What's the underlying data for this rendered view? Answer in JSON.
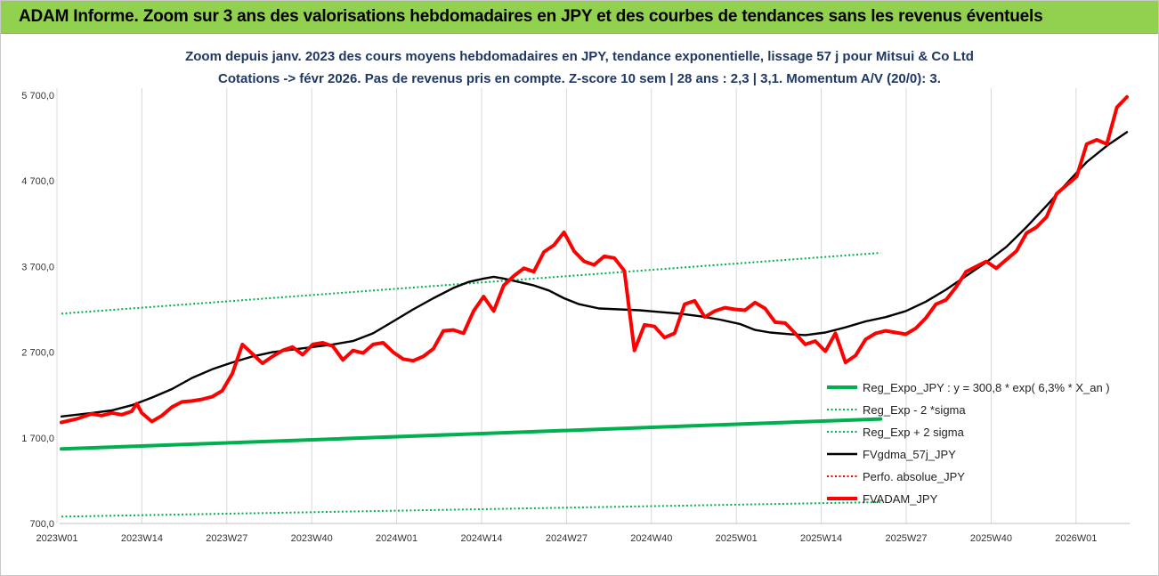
{
  "banner": {
    "title": "ADAM Informe. Zoom sur 3 ans des valorisations hebdomadaires en JPY et des courbes de tendances sans les revenus éventuels"
  },
  "chart_data": {
    "type": "line",
    "title_line1": "Zoom depuis janv. 2023 des cours moyens hebdomadaires en JPY, tendance exponentielle, lissage 57 j pour Mitsui & Co Ltd",
    "title_line2": "Cotations -> févr 2026.  Pas de revenus pris en compte. Z-score 10 sem | 28 ans : 2,3 | 3,1. Momentum A/V (20/0): 3.",
    "xlabel": "",
    "ylabel": "",
    "ylim": [
      700,
      5700
    ],
    "yticks": [
      "700,0",
      "1 700,0",
      "2 700,0",
      "3 700,0",
      "4 700,0",
      "5 700,0"
    ],
    "ytick_values": [
      700,
      1700,
      2700,
      3700,
      4700,
      5700
    ],
    "xticks": [
      "2023W01",
      "2023W14",
      "2023W27",
      "2023W40",
      "2024W01",
      "2024W14",
      "2024W27",
      "2024W40",
      "2025W01",
      "2025W14",
      "2025W27",
      "2025W40",
      "2026W01"
    ],
    "grid": "vertical",
    "legend_position": "bottom-right",
    "week_count": 163,
    "series": [
      {
        "name": "Reg_Expo_JPY : y = 300,8 * exp( 6,3% *  X_an )",
        "color": "#00b050",
        "style": "solid-thick",
        "points": [
          [
            0,
            1570
          ],
          [
            163,
            1920
          ]
        ]
      },
      {
        "name": "Reg_Exp - 2 *sigma",
        "color": "#00b050",
        "style": "dotted",
        "points": [
          [
            0,
            780
          ],
          [
            163,
            950
          ]
        ]
      },
      {
        "name": "Reg_Exp + 2 sigma",
        "color": "#00b050",
        "style": "dotted",
        "points": [
          [
            0,
            3150
          ],
          [
            163,
            3860
          ]
        ]
      },
      {
        "name": "FVgdma_57j_JPY",
        "color": "#000000",
        "style": "solid",
        "points": [
          [
            0,
            1950
          ],
          [
            6,
            1990
          ],
          [
            10,
            2020
          ],
          [
            14,
            2080
          ],
          [
            18,
            2170
          ],
          [
            22,
            2270
          ],
          [
            26,
            2400
          ],
          [
            30,
            2500
          ],
          [
            34,
            2580
          ],
          [
            38,
            2650
          ],
          [
            42,
            2700
          ],
          [
            46,
            2730
          ],
          [
            50,
            2760
          ],
          [
            54,
            2790
          ],
          [
            58,
            2830
          ],
          [
            62,
            2920
          ],
          [
            66,
            3060
          ],
          [
            70,
            3200
          ],
          [
            74,
            3330
          ],
          [
            78,
            3450
          ],
          [
            81,
            3520
          ],
          [
            84,
            3560
          ],
          [
            86,
            3580
          ],
          [
            88,
            3560
          ],
          [
            91,
            3520
          ],
          [
            94,
            3480
          ],
          [
            97,
            3420
          ],
          [
            100,
            3330
          ],
          [
            103,
            3260
          ],
          [
            107,
            3210
          ],
          [
            111,
            3200
          ],
          [
            115,
            3190
          ],
          [
            119,
            3170
          ],
          [
            123,
            3150
          ],
          [
            127,
            3120
          ],
          [
            131,
            3080
          ],
          [
            135,
            3030
          ],
          [
            138,
            2960
          ],
          [
            141,
            2930
          ],
          [
            145,
            2910
          ],
          [
            148,
            2900
          ],
          [
            152,
            2930
          ],
          [
            156,
            2990
          ],
          [
            160,
            3060
          ],
          [
            164,
            3110
          ],
          [
            168,
            3180
          ],
          [
            172,
            3290
          ],
          [
            176,
            3430
          ],
          [
            180,
            3590
          ],
          [
            184,
            3750
          ],
          [
            188,
            3930
          ],
          [
            192,
            4160
          ],
          [
            196,
            4410
          ],
          [
            200,
            4670
          ],
          [
            204,
            4920
          ],
          [
            208,
            5110
          ],
          [
            212,
            5270
          ]
        ]
      },
      {
        "name": "Perfo. absolue_JPY",
        "color": "#ff0000",
        "style": "dotted",
        "points": []
      },
      {
        "name": "FVADAM_JPY",
        "color": "#ff0000",
        "style": "solid-thick",
        "points": [
          [
            0,
            1880
          ],
          [
            3,
            1920
          ],
          [
            6,
            1980
          ],
          [
            8,
            1960
          ],
          [
            10,
            1990
          ],
          [
            12,
            1970
          ],
          [
            14,
            2010
          ],
          [
            15,
            2100
          ],
          [
            16,
            1990
          ],
          [
            18,
            1890
          ],
          [
            20,
            1960
          ],
          [
            22,
            2060
          ],
          [
            24,
            2120
          ],
          [
            26,
            2130
          ],
          [
            28,
            2150
          ],
          [
            30,
            2180
          ],
          [
            32,
            2250
          ],
          [
            34,
            2450
          ],
          [
            36,
            2790
          ],
          [
            38,
            2680
          ],
          [
            40,
            2570
          ],
          [
            42,
            2650
          ],
          [
            44,
            2720
          ],
          [
            46,
            2760
          ],
          [
            48,
            2670
          ],
          [
            50,
            2790
          ],
          [
            52,
            2810
          ],
          [
            54,
            2770
          ],
          [
            56,
            2610
          ],
          [
            58,
            2720
          ],
          [
            60,
            2690
          ],
          [
            62,
            2790
          ],
          [
            64,
            2810
          ],
          [
            66,
            2700
          ],
          [
            68,
            2620
          ],
          [
            70,
            2600
          ],
          [
            72,
            2650
          ],
          [
            74,
            2740
          ],
          [
            76,
            2950
          ],
          [
            78,
            2960
          ],
          [
            80,
            2920
          ],
          [
            82,
            3180
          ],
          [
            84,
            3350
          ],
          [
            86,
            3180
          ],
          [
            88,
            3480
          ],
          [
            90,
            3590
          ],
          [
            92,
            3680
          ],
          [
            94,
            3640
          ],
          [
            96,
            3870
          ],
          [
            98,
            3950
          ],
          [
            100,
            4100
          ],
          [
            102,
            3880
          ],
          [
            104,
            3760
          ],
          [
            106,
            3720
          ],
          [
            108,
            3820
          ],
          [
            110,
            3800
          ],
          [
            112,
            3650
          ],
          [
            114,
            2720
          ],
          [
            116,
            3020
          ],
          [
            118,
            3000
          ],
          [
            120,
            2870
          ],
          [
            122,
            2920
          ],
          [
            124,
            3260
          ],
          [
            126,
            3300
          ],
          [
            128,
            3110
          ],
          [
            130,
            3180
          ],
          [
            132,
            3220
          ],
          [
            134,
            3200
          ],
          [
            136,
            3190
          ],
          [
            138,
            3280
          ],
          [
            140,
            3210
          ],
          [
            142,
            3050
          ],
          [
            144,
            3040
          ],
          [
            146,
            2920
          ],
          [
            148,
            2790
          ],
          [
            150,
            2830
          ],
          [
            152,
            2710
          ],
          [
            154,
            2920
          ],
          [
            156,
            2580
          ],
          [
            158,
            2660
          ],
          [
            160,
            2850
          ],
          [
            162,
            2920
          ],
          [
            164,
            2950
          ],
          [
            166,
            2930
          ],
          [
            168,
            2910
          ],
          [
            170,
            2980
          ],
          [
            172,
            3100
          ],
          [
            174,
            3260
          ],
          [
            176,
            3310
          ],
          [
            178,
            3460
          ],
          [
            180,
            3640
          ],
          [
            182,
            3700
          ],
          [
            184,
            3760
          ],
          [
            186,
            3680
          ],
          [
            188,
            3780
          ],
          [
            190,
            3880
          ],
          [
            192,
            4090
          ],
          [
            194,
            4160
          ],
          [
            196,
            4280
          ],
          [
            198,
            4550
          ],
          [
            200,
            4650
          ],
          [
            202,
            4750
          ],
          [
            204,
            5130
          ],
          [
            206,
            5180
          ],
          [
            208,
            5130
          ],
          [
            210,
            5560
          ],
          [
            212,
            5680
          ]
        ]
      }
    ]
  }
}
